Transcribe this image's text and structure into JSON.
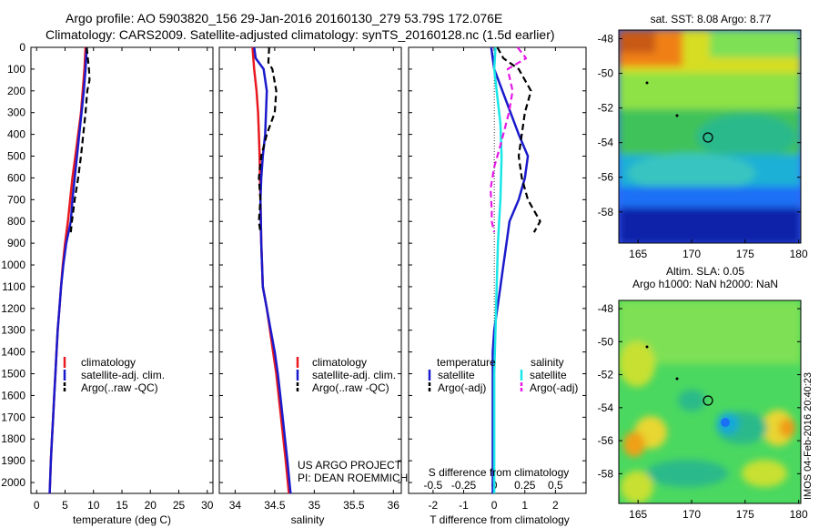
{
  "header": {
    "line1": "Argo profile: AO 5903820_156 29-Jan-2016 20160130_279 53.79S 172.076E",
    "line2": "Climatology: CARS2009. Satellite-adjusted climatology: synTS_20160128.nc (1.5d earlier)"
  },
  "depth_ticks": [
    "0",
    "100",
    "200",
    "300",
    "400",
    "500",
    "600",
    "700",
    "800",
    "900",
    "1000",
    "1100",
    "1200",
    "1300",
    "1400",
    "1500",
    "1600",
    "1700",
    "1800",
    "1900",
    "2000"
  ],
  "colors": {
    "red": "#e8191f",
    "blue": "#1a1acc",
    "black": "#000000",
    "cyan": "#19e6e6",
    "magenta": "#e619e6"
  },
  "temp_panel": {
    "xlabel": "temperature (deg C)",
    "xticks": [
      "0",
      "5",
      "10",
      "15",
      "20",
      "25",
      "30"
    ],
    "legend": [
      "climatology",
      "satellite-adj. clim.",
      "Argo(..raw -QC)"
    ]
  },
  "sal_panel": {
    "xlabel": "salinity",
    "xticks": [
      "34",
      "34.5",
      "35",
      "35.5",
      "36"
    ],
    "legend": [
      "climatology",
      "satellite-adj. clim.",
      "Argo(..raw -QC)"
    ],
    "note1": "US ARGO PROJECT",
    "note2": "PI: DEAN ROEMMICH"
  },
  "diff_panel": {
    "top_label": "S difference from climatology",
    "top_ticks": [
      "-0.5",
      "-0.25",
      "0",
      "0.25",
      "0.5"
    ],
    "xlabel": "T difference from climatology",
    "xticks": [
      "-2",
      "-1",
      "0",
      "1",
      "2"
    ],
    "legend_t_title": "temperature",
    "legend_s_title": "salinity",
    "legend_t": [
      "satellite",
      "Argo(-adj)"
    ],
    "legend_s": [
      "satellite",
      "Argo(-adj)"
    ]
  },
  "sst_map": {
    "title": "sat. SST: 8.08 Argo: 8.77",
    "yticks": [
      "-48",
      "-50",
      "-52",
      "-54",
      "-56",
      "-58"
    ],
    "xticks": [
      "165",
      "170",
      "175",
      "180"
    ]
  },
  "sla_map": {
    "title1": "Altim. SLA: 0.05",
    "title2": "Argo h1000: NaN h2000: NaN",
    "yticks": [
      "-48",
      "-50",
      "-52",
      "-54",
      "-56",
      "-58"
    ],
    "xticks": [
      "165",
      "170",
      "175",
      "180"
    ]
  },
  "credit": "IMOS 04-Feb-2016 20:40:23",
  "chart_data": [
    {
      "type": "line",
      "name": "temperature profile",
      "xlabel": "temperature (deg C)",
      "xlim": [
        -1,
        31
      ],
      "ylim": [
        2050,
        0
      ],
      "series": [
        {
          "name": "climatology",
          "color": "red",
          "points": [
            [
              8.6,
              0
            ],
            [
              8.4,
              100
            ],
            [
              8.1,
              200
            ],
            [
              7.8,
              300
            ],
            [
              7.3,
              400
            ],
            [
              6.8,
              500
            ],
            [
              6.3,
              600
            ],
            [
              5.9,
              700
            ],
            [
              5.5,
              800
            ],
            [
              5.0,
              900
            ],
            [
              4.6,
              1000
            ],
            [
              4.3,
              1100
            ],
            [
              4.0,
              1200
            ],
            [
              3.7,
              1300
            ],
            [
              3.5,
              1400
            ],
            [
              3.3,
              1500
            ],
            [
              3.1,
              1600
            ],
            [
              2.9,
              1700
            ],
            [
              2.7,
              1800
            ],
            [
              2.5,
              1900
            ],
            [
              2.3,
              2050
            ]
          ]
        },
        {
          "name": "satellite-adj. clim.",
          "color": "blue",
          "points": [
            [
              8.8,
              0
            ],
            [
              8.6,
              100
            ],
            [
              8.3,
              200
            ],
            [
              7.9,
              300
            ],
            [
              7.5,
              400
            ],
            [
              7.1,
              500
            ],
            [
              6.7,
              600
            ],
            [
              6.3,
              700
            ],
            [
              6.0,
              800
            ],
            [
              5.2,
              900
            ],
            [
              4.7,
              1000
            ],
            [
              4.3,
              1100
            ],
            [
              4.0,
              1200
            ],
            [
              3.7,
              1300
            ],
            [
              3.5,
              1400
            ],
            [
              3.3,
              1500
            ],
            [
              3.1,
              1600
            ],
            [
              2.9,
              1700
            ],
            [
              2.7,
              1800
            ],
            [
              2.5,
              1900
            ],
            [
              2.3,
              2050
            ]
          ]
        },
        {
          "name": "Argo(..raw -QC)",
          "color": "black",
          "dashed": true,
          "points": [
            [
              8.8,
              0
            ],
            [
              9.0,
              50
            ],
            [
              9.2,
              100
            ],
            [
              9.3,
              150
            ],
            [
              8.9,
              200
            ],
            [
              8.6,
              300
            ],
            [
              8.2,
              400
            ],
            [
              7.8,
              500
            ],
            [
              7.3,
              600
            ],
            [
              6.7,
              700
            ],
            [
              6.2,
              800
            ],
            [
              6.0,
              850
            ]
          ]
        }
      ]
    },
    {
      "type": "line",
      "name": "salinity profile",
      "xlabel": "salinity",
      "xlim": [
        33.8,
        36.1
      ],
      "ylim": [
        2050,
        0
      ],
      "series": [
        {
          "name": "climatology",
          "color": "red",
          "points": [
            [
              34.22,
              0
            ],
            [
              34.24,
              100
            ],
            [
              34.27,
              200
            ],
            [
              34.29,
              300
            ],
            [
              34.3,
              400
            ],
            [
              34.31,
              500
            ],
            [
              34.32,
              700
            ],
            [
              34.33,
              900
            ],
            [
              34.35,
              1100
            ],
            [
              34.4,
              1200
            ],
            [
              34.44,
              1300
            ],
            [
              34.48,
              1400
            ],
            [
              34.52,
              1500
            ],
            [
              34.55,
              1600
            ],
            [
              34.58,
              1700
            ],
            [
              34.61,
              1800
            ],
            [
              34.64,
              1900
            ],
            [
              34.68,
              2050
            ]
          ]
        },
        {
          "name": "satellite-adj. clim.",
          "color": "blue",
          "points": [
            [
              34.24,
              0
            ],
            [
              34.26,
              50
            ],
            [
              34.36,
              100
            ],
            [
              34.4,
              200
            ],
            [
              34.39,
              300
            ],
            [
              34.38,
              400
            ],
            [
              34.35,
              500
            ],
            [
              34.33,
              600
            ],
            [
              34.32,
              700
            ],
            [
              34.33,
              900
            ],
            [
              34.35,
              1100
            ],
            [
              34.4,
              1200
            ],
            [
              34.45,
              1300
            ],
            [
              34.5,
              1400
            ],
            [
              34.54,
              1500
            ],
            [
              34.57,
              1600
            ],
            [
              34.6,
              1700
            ],
            [
              34.63,
              1800
            ],
            [
              34.66,
              1900
            ],
            [
              34.7,
              2050
            ]
          ]
        },
        {
          "name": "Argo(..raw -QC)",
          "color": "black",
          "dashed": true,
          "points": [
            [
              34.43,
              0
            ],
            [
              34.42,
              70
            ],
            [
              34.47,
              100
            ],
            [
              34.52,
              200
            ],
            [
              34.5,
              300
            ],
            [
              34.4,
              400
            ],
            [
              34.33,
              500
            ],
            [
              34.3,
              600
            ],
            [
              34.32,
              700
            ],
            [
              34.3,
              800
            ],
            [
              34.32,
              850
            ]
          ]
        }
      ]
    },
    {
      "type": "line",
      "name": "difference from climatology",
      "xlabel": "T difference from climatology",
      "xlim": [
        -2.8,
        3.0
      ],
      "top_axis": {
        "label": "S difference from climatology",
        "xlim": [
          -0.7,
          0.75
        ]
      },
      "ylim": [
        2050,
        0
      ],
      "series": [
        {
          "name": "temperature satellite",
          "color": "blue",
          "axis": "T",
          "points": [
            [
              -0.1,
              0
            ],
            [
              0.0,
              100
            ],
            [
              0.4,
              250
            ],
            [
              0.8,
              400
            ],
            [
              1.1,
              500
            ],
            [
              1.0,
              600
            ],
            [
              0.8,
              700
            ],
            [
              0.5,
              800
            ],
            [
              0.4,
              900
            ],
            [
              0.3,
              1000
            ],
            [
              0.2,
              1100
            ],
            [
              0.1,
              1200
            ],
            [
              0.0,
              1300
            ],
            [
              -0.05,
              1400
            ],
            [
              -0.05,
              1600
            ],
            [
              -0.05,
              2000
            ],
            [
              -0.05,
              2050
            ]
          ]
        },
        {
          "name": "temperature Argo(-adj)",
          "color": "black",
          "dashed": true,
          "axis": "T",
          "points": [
            [
              0.1,
              0
            ],
            [
              0.3,
              50
            ],
            [
              0.8,
              100
            ],
            [
              1.2,
              200
            ],
            [
              1.0,
              300
            ],
            [
              0.9,
              400
            ],
            [
              0.8,
              500
            ],
            [
              0.9,
              600
            ],
            [
              1.1,
              700
            ],
            [
              1.5,
              800
            ],
            [
              1.3,
              850
            ]
          ]
        },
        {
          "name": "salinity satellite",
          "color": "cyan",
          "axis": "S",
          "points": [
            [
              0.01,
              0
            ],
            [
              0.0,
              100
            ],
            [
              0.02,
              200
            ],
            [
              0.05,
              350
            ],
            [
              0.06,
              500
            ],
            [
              0.05,
              700
            ],
            [
              0.04,
              800
            ],
            [
              0.03,
              900
            ],
            [
              0.02,
              1100
            ],
            [
              0.01,
              1300
            ],
            [
              0.0,
              1500
            ],
            [
              0.0,
              2050
            ]
          ]
        },
        {
          "name": "salinity Argo(-adj)",
          "color": "magenta",
          "dashed": true,
          "axis": "S",
          "points": [
            [
              0.19,
              0
            ],
            [
              0.26,
              50
            ],
            [
              0.11,
              100
            ],
            [
              0.15,
              200
            ],
            [
              0.12,
              300
            ],
            [
              0.05,
              450
            ],
            [
              0.0,
              550
            ],
            [
              -0.03,
              650
            ],
            [
              -0.02,
              750
            ],
            [
              -0.02,
              800
            ],
            [
              0.0,
              850
            ]
          ]
        }
      ]
    }
  ]
}
